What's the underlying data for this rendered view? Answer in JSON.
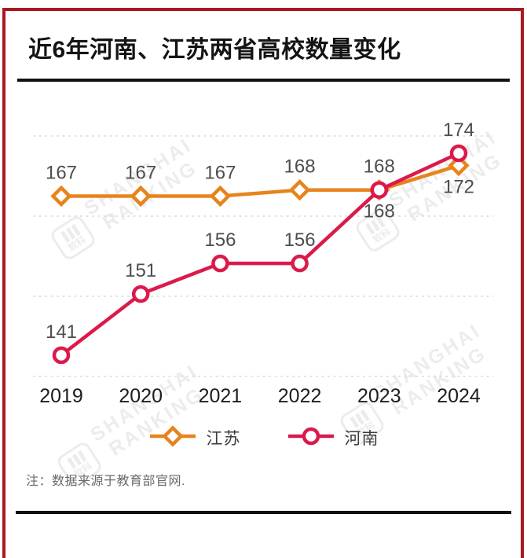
{
  "page": {
    "title": "近6年河南、江苏两省高校数量变化",
    "note": "注：数据来源于教育部官网.",
    "watermark": {
      "brand_line1": "SHANGHAI",
      "brand_line2": "RANKING",
      "logo_text": "软科"
    },
    "colors": {
      "frame_red": "#A9191F",
      "jiangsu_orange": "#E8831D",
      "henan_red": "#DB1A4B",
      "data_label_gray": "#4D4D4D",
      "axis_label_black": "#1E1E1E",
      "grid_gray": "#DCDCDC"
    }
  },
  "chart_data": {
    "type": "line",
    "title": "近6年河南、江苏两省高校数量变化",
    "categories": [
      "2019",
      "2020",
      "2021",
      "2022",
      "2023",
      "2024"
    ],
    "series": [
      {
        "name": "江苏",
        "marker": "diamond",
        "color": "#E8831D",
        "values": [
          167,
          167,
          167,
          168,
          168,
          172
        ],
        "label_side": [
          "above",
          "above",
          "above",
          "above",
          "above",
          "below"
        ]
      },
      {
        "name": "河南",
        "marker": "circle",
        "color": "#DB1A4B",
        "values": [
          141,
          151,
          156,
          156,
          168,
          174
        ],
        "label_side": [
          "above",
          "above",
          "above",
          "above",
          "below",
          "above"
        ]
      }
    ],
    "ylim": [
      135,
      182
    ],
    "xlabel": "",
    "ylabel": "",
    "grid": "horizontal-dashed",
    "legend_position": "bottom"
  }
}
